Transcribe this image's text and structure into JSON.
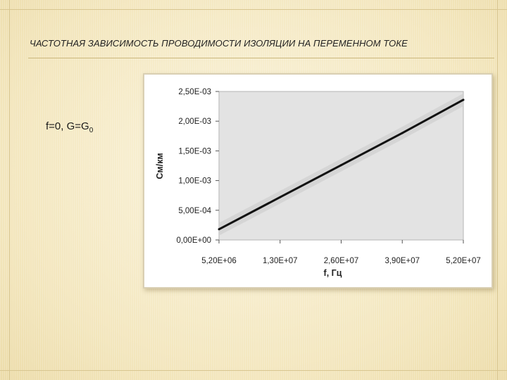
{
  "slide": {
    "title": "ЧАСТОТНАЯ ЗАВИСИМОСТЬ ПРОВОДИМОСТИ ИЗОЛЯЦИИ НА ПЕРЕМЕННОМ ТОКЕ",
    "formula": {
      "prefix": "f=0, G=G",
      "subscript": "0"
    }
  },
  "colors": {
    "plot_background": "#e3e3e3",
    "line": "#111111",
    "band": "#cfcfcf"
  },
  "chart_data": {
    "type": "line",
    "title": "",
    "xlabel": "f, Гц",
    "ylabel": "См/км",
    "categories": [
      "5,20E+06",
      "1,30E+07",
      "2,60E+07",
      "3,90E+07",
      "5,20E+07"
    ],
    "y_ticks": [
      "0,00E+00",
      "5,00E-04",
      "1,00E-03",
      "1,50E-03",
      "2,00E-03",
      "2,50E-03"
    ],
    "ylim": [
      0,
      0.0025
    ],
    "series": [
      {
        "values": [
          0.00018,
          0.00072,
          0.00126,
          0.0018,
          0.00236
        ]
      }
    ],
    "grid": false,
    "legend": "none"
  }
}
